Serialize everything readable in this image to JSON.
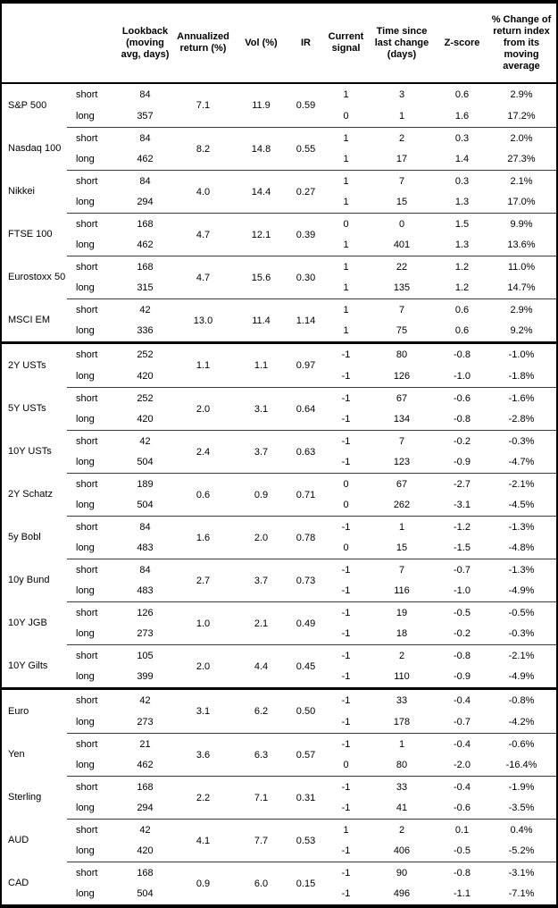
{
  "table": {
    "headers": {
      "lookback": "Lookback\n(moving\navg, days)",
      "ann_return": "Annualized\nreturn (%)",
      "vol": "Vol (%)",
      "ir": "IR",
      "signal": "Current\nsignal",
      "time_since": "Time since\nlast change\n(days)",
      "z_score": "Z-score",
      "pct_change": "% Change of\nreturn index\nfrom its\nmoving\naverage"
    },
    "row_labels": {
      "short": "short",
      "long": "long"
    },
    "groups": [
      [
        {
          "name": "S&P 500",
          "ann_return": "7.1",
          "vol": "11.9",
          "ir": "0.59",
          "short": {
            "lookback": "84",
            "signal": "1",
            "time": "3",
            "z": "0.6",
            "pct": "2.9%"
          },
          "long": {
            "lookback": "357",
            "signal": "0",
            "time": "1",
            "z": "1.6",
            "pct": "17.2%"
          }
        },
        {
          "name": "Nasdaq 100",
          "ann_return": "8.2",
          "vol": "14.8",
          "ir": "0.55",
          "short": {
            "lookback": "84",
            "signal": "1",
            "time": "2",
            "z": "0.3",
            "pct": "2.0%"
          },
          "long": {
            "lookback": "462",
            "signal": "1",
            "time": "17",
            "z": "1.4",
            "pct": "27.3%"
          }
        },
        {
          "name": "Nikkei",
          "ann_return": "4.0",
          "vol": "14.4",
          "ir": "0.27",
          "short": {
            "lookback": "84",
            "signal": "1",
            "time": "7",
            "z": "0.3",
            "pct": "2.1%"
          },
          "long": {
            "lookback": "294",
            "signal": "1",
            "time": "15",
            "z": "1.3",
            "pct": "17.0%"
          }
        },
        {
          "name": "FTSE 100",
          "ann_return": "4.7",
          "vol": "12.1",
          "ir": "0.39",
          "short": {
            "lookback": "168",
            "signal": "0",
            "time": "0",
            "z": "1.5",
            "pct": "9.9%"
          },
          "long": {
            "lookback": "462",
            "signal": "1",
            "time": "401",
            "z": "1.3",
            "pct": "13.6%"
          }
        },
        {
          "name": "Eurostoxx 50",
          "ann_return": "4.7",
          "vol": "15.6",
          "ir": "0.30",
          "short": {
            "lookback": "168",
            "signal": "1",
            "time": "22",
            "z": "1.2",
            "pct": "11.0%"
          },
          "long": {
            "lookback": "315",
            "signal": "1",
            "time": "135",
            "z": "1.2",
            "pct": "14.7%"
          }
        },
        {
          "name": "MSCI EM",
          "ann_return": "13.0",
          "vol": "11.4",
          "ir": "1.14",
          "short": {
            "lookback": "42",
            "signal": "1",
            "time": "7",
            "z": "0.6",
            "pct": "2.9%"
          },
          "long": {
            "lookback": "336",
            "signal": "1",
            "time": "75",
            "z": "0.6",
            "pct": "9.2%"
          }
        }
      ],
      [
        {
          "name": "2Y USTs",
          "ann_return": "1.1",
          "vol": "1.1",
          "ir": "0.97",
          "short": {
            "lookback": "252",
            "signal": "-1",
            "time": "80",
            "z": "-0.8",
            "pct": "-1.0%"
          },
          "long": {
            "lookback": "420",
            "signal": "-1",
            "time": "126",
            "z": "-1.0",
            "pct": "-1.8%"
          }
        },
        {
          "name": "5Y USTs",
          "ann_return": "2.0",
          "vol": "3.1",
          "ir": "0.64",
          "short": {
            "lookback": "252",
            "signal": "-1",
            "time": "67",
            "z": "-0.6",
            "pct": "-1.6%"
          },
          "long": {
            "lookback": "420",
            "signal": "-1",
            "time": "134",
            "z": "-0.8",
            "pct": "-2.8%"
          }
        },
        {
          "name": "10Y USTs",
          "ann_return": "2.4",
          "vol": "3.7",
          "ir": "0.63",
          "short": {
            "lookback": "42",
            "signal": "-1",
            "time": "7",
            "z": "-0.2",
            "pct": "-0.3%"
          },
          "long": {
            "lookback": "504",
            "signal": "-1",
            "time": "123",
            "z": "-0.9",
            "pct": "-4.7%"
          }
        },
        {
          "name": "2Y Schatz",
          "ann_return": "0.6",
          "vol": "0.9",
          "ir": "0.71",
          "short": {
            "lookback": "189",
            "signal": "0",
            "time": "67",
            "z": "-2.7",
            "pct": "-2.1%"
          },
          "long": {
            "lookback": "504",
            "signal": "0",
            "time": "262",
            "z": "-3.1",
            "pct": "-4.5%"
          }
        },
        {
          "name": "5y Bobl",
          "ann_return": "1.6",
          "vol": "2.0",
          "ir": "0.78",
          "short": {
            "lookback": "84",
            "signal": "-1",
            "time": "1",
            "z": "-1.2",
            "pct": "-1.3%"
          },
          "long": {
            "lookback": "483",
            "signal": "0",
            "time": "15",
            "z": "-1.5",
            "pct": "-4.8%"
          }
        },
        {
          "name": "10y Bund",
          "ann_return": "2.7",
          "vol": "3.7",
          "ir": "0.73",
          "short": {
            "lookback": "84",
            "signal": "-1",
            "time": "7",
            "z": "-0.7",
            "pct": "-1.3%"
          },
          "long": {
            "lookback": "483",
            "signal": "-1",
            "time": "116",
            "z": "-1.0",
            "pct": "-4.9%"
          }
        },
        {
          "name": "10Y JGB",
          "ann_return": "1.0",
          "vol": "2.1",
          "ir": "0.49",
          "short": {
            "lookback": "126",
            "signal": "-1",
            "time": "19",
            "z": "-0.5",
            "pct": "-0.5%"
          },
          "long": {
            "lookback": "273",
            "signal": "-1",
            "time": "18",
            "z": "-0.2",
            "pct": "-0.3%"
          }
        },
        {
          "name": "10Y Gilts",
          "ann_return": "2.0",
          "vol": "4.4",
          "ir": "0.45",
          "short": {
            "lookback": "105",
            "signal": "-1",
            "time": "2",
            "z": "-0.8",
            "pct": "-2.1%"
          },
          "long": {
            "lookback": "399",
            "signal": "-1",
            "time": "110",
            "z": "-0.9",
            "pct": "-4.9%"
          }
        }
      ],
      [
        {
          "name": "Euro",
          "ann_return": "3.1",
          "vol": "6.2",
          "ir": "0.50",
          "short": {
            "lookback": "42",
            "signal": "-1",
            "time": "33",
            "z": "-0.4",
            "pct": "-0.8%"
          },
          "long": {
            "lookback": "273",
            "signal": "-1",
            "time": "178",
            "z": "-0.7",
            "pct": "-4.2%"
          }
        },
        {
          "name": "Yen",
          "ann_return": "3.6",
          "vol": "6.3",
          "ir": "0.57",
          "short": {
            "lookback": "21",
            "signal": "-1",
            "time": "1",
            "z": "-0.4",
            "pct": "-0.6%"
          },
          "long": {
            "lookback": "462",
            "signal": "0",
            "time": "80",
            "z": "-2.0",
            "pct": "-16.4%"
          }
        },
        {
          "name": "Sterling",
          "ann_return": "2.2",
          "vol": "7.1",
          "ir": "0.31",
          "short": {
            "lookback": "168",
            "signal": "-1",
            "time": "33",
            "z": "-0.4",
            "pct": "-1.9%"
          },
          "long": {
            "lookback": "294",
            "signal": "-1",
            "time": "41",
            "z": "-0.6",
            "pct": "-3.5%"
          }
        },
        {
          "name": "AUD",
          "ann_return": "4.1",
          "vol": "7.7",
          "ir": "0.53",
          "short": {
            "lookback": "42",
            "signal": "1",
            "time": "2",
            "z": "0.1",
            "pct": "0.4%"
          },
          "long": {
            "lookback": "420",
            "signal": "-1",
            "time": "406",
            "z": "-0.5",
            "pct": "-5.2%"
          }
        },
        {
          "name": "CAD",
          "ann_return": "0.9",
          "vol": "6.0",
          "ir": "0.15",
          "short": {
            "lookback": "168",
            "signal": "-1",
            "time": "90",
            "z": "-0.8",
            "pct": "-3.1%"
          },
          "long": {
            "lookback": "504",
            "signal": "-1",
            "time": "496",
            "z": "-1.1",
            "pct": "-7.1%"
          }
        }
      ]
    ]
  },
  "colors": {
    "border": "#000000",
    "text": "#000000",
    "background": "#ffffff"
  }
}
